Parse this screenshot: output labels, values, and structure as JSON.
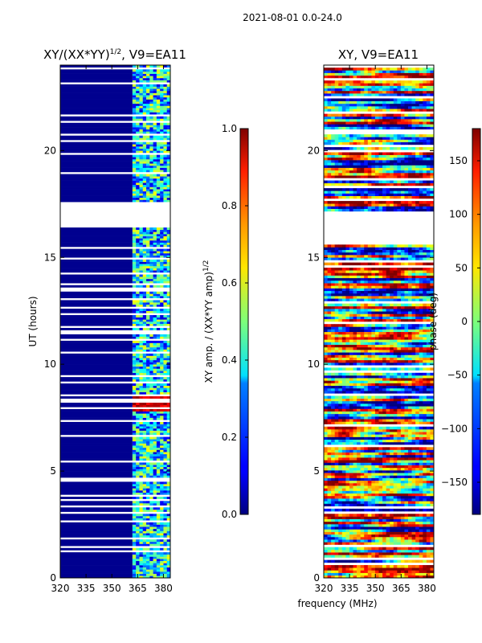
{
  "page_title": "2021-08-01 0.0-24.0",
  "chart_data": [
    {
      "type": "heatmap",
      "title": "XY/(XX*YY)",
      "title_sup": "1/2",
      "title_suffix": ", V9=EA11",
      "xlabel": "",
      "ylabel": "UT (hours)",
      "xlim": [
        320,
        384
      ],
      "ylim": [
        0,
        24
      ],
      "xticks": [
        320,
        335,
        350,
        365,
        380
      ],
      "yticks": [
        0,
        5,
        10,
        15,
        20
      ],
      "active_band_MHz": [
        362,
        384
      ],
      "gap_hours": [
        [
          16.4,
          17.6
        ]
      ],
      "colorbar": {
        "label": "XY amp. / (XX*YY amp)",
        "label_sup": "1/2",
        "range": [
          0.0,
          1.0
        ],
        "ticks": [
          "0.0",
          "0.2",
          "0.4",
          "0.6",
          "0.8",
          "1.0"
        ]
      }
    },
    {
      "type": "heatmap",
      "title": "XY, V9=EA11",
      "xlabel": "frequency (MHz)",
      "ylabel": "",
      "xlim": [
        320,
        384
      ],
      "ylim": [
        0,
        24
      ],
      "xticks": [
        320,
        335,
        350,
        365,
        380
      ],
      "yticks": [
        0,
        5,
        10,
        15,
        20
      ],
      "gap_hours": [
        [
          15.7,
          17.1
        ]
      ],
      "colorbar": {
        "label": "phase (deg)",
        "range": [
          -180,
          180
        ],
        "ticks": [
          "-150",
          "-100",
          "-50",
          "0",
          "50",
          "100",
          "150"
        ]
      }
    }
  ]
}
